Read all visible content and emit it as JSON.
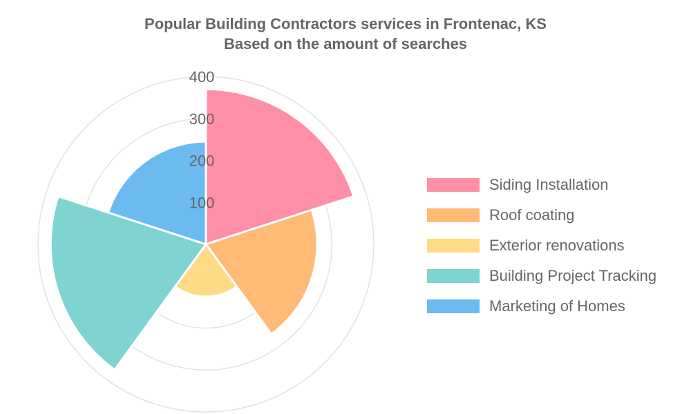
{
  "header": {
    "title_line1": "Popular Building Contractors services in Frontenac, KS",
    "title_line2": "Based on the amount of searches"
  },
  "chart_data": {
    "type": "polar-area",
    "title": "Popular Building Contractors services in Frontenac, KS",
    "subtitle": "Based on the amount of searches",
    "categories": [
      "Siding Installation",
      "Roof coating",
      "Exterior renovations",
      "Building Project Tracking",
      "Marketing of Homes"
    ],
    "values": [
      370,
      265,
      125,
      370,
      245
    ],
    "colors": [
      "#ff8fa6",
      "#ffbb76",
      "#ffdb86",
      "#7fd3d1",
      "#6cbbf0"
    ],
    "rlim": [
      0,
      400
    ],
    "ticks": [
      100,
      200,
      300,
      400
    ],
    "grid": true,
    "legend_position": "right"
  }
}
